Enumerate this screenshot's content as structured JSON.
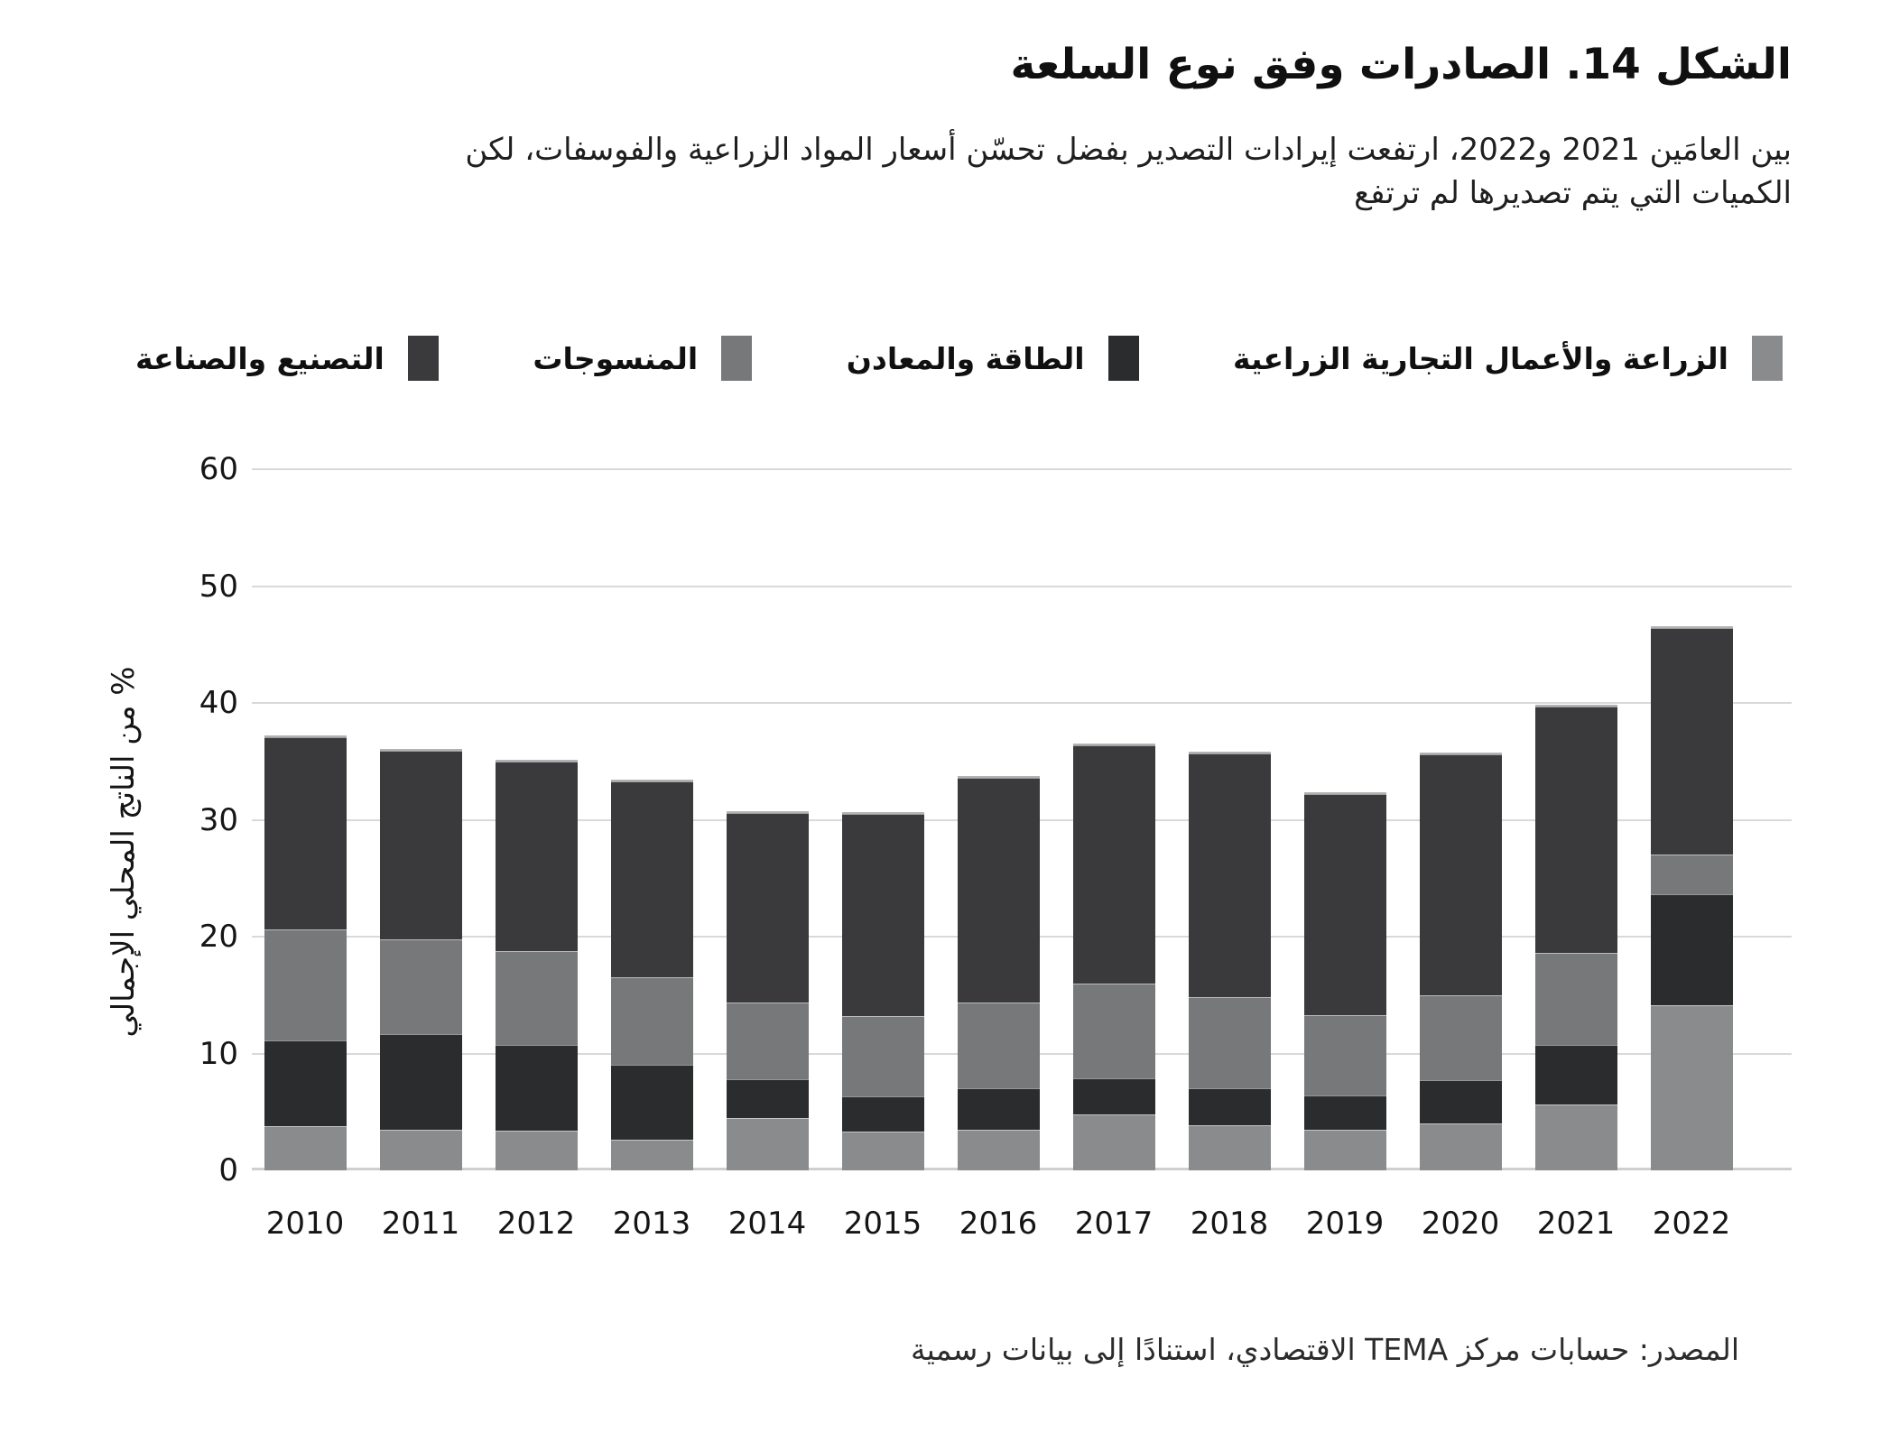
{
  "title": "الشكل 14. الصادرات وفق نوع السلعة",
  "subtitle": {
    "line1": "بين العامَين 2021 و2022، ارتفعت إيرادات التصدير بفضل تحسّن أسعار المواد الزراعية والفوسفات، لكن",
    "line2": "الكميات التي يتم تصديرها لم ترتفع"
  },
  "legend": [
    {
      "key": "agriculture",
      "label": "الزراعة والأعمال التجارية الزراعية",
      "color": "#8a8b8d"
    },
    {
      "key": "energy",
      "label": "الطاقة والمعادن",
      "color": "#2b2c2e"
    },
    {
      "key": "textiles",
      "label": "المنسوجات",
      "color": "#77787a"
    },
    {
      "key": "manufacturing",
      "label": "التصنيع والصناعة",
      "color": "#3a3a3c"
    }
  ],
  "y_axis": {
    "label": "% من الناتج المحلي الإجمالي",
    "ticks": [
      0,
      10,
      20,
      30,
      40,
      50,
      60
    ],
    "min": 0,
    "max": 60
  },
  "chart_data": {
    "type": "bar",
    "stacked": true,
    "title": "الشكل 14. الصادرات وفق نوع السلعة",
    "xlabel": "",
    "ylabel": "% من الناتج المحلي الإجمالي",
    "ylim": [
      0,
      60
    ],
    "grid": true,
    "legend_position": "top",
    "categories": [
      "2010",
      "2011",
      "2012",
      "2013",
      "2014",
      "2015",
      "2016",
      "2017",
      "2018",
      "2019",
      "2020",
      "2021",
      "2022"
    ],
    "series": [
      {
        "key": "agriculture",
        "name": "الزراعة والأعمال التجارية الزراعية",
        "color": "#8a8b8d",
        "values": [
          3.8,
          3.5,
          3.4,
          2.6,
          4.5,
          3.3,
          3.5,
          4.8,
          3.9,
          3.5,
          4.0,
          5.6,
          14.1
        ]
      },
      {
        "key": "energy",
        "name": "الطاقة والمعادن",
        "color": "#2b2c2e",
        "values": [
          7.3,
          8.2,
          7.3,
          6.4,
          3.3,
          3.0,
          3.5,
          3.1,
          3.1,
          2.9,
          3.7,
          5.1,
          9.5
        ]
      },
      {
        "key": "textiles",
        "name": "المنسوجات",
        "color": "#77787a",
        "values": [
          9.5,
          8.1,
          8.1,
          7.5,
          6.6,
          6.9,
          7.4,
          8.1,
          7.8,
          6.9,
          7.3,
          7.9,
          3.4
        ]
      },
      {
        "key": "manufacturing",
        "name": "التصنيع والصناعة",
        "color": "#3a3a3c",
        "values": [
          16.5,
          16.1,
          16.2,
          16.8,
          16.2,
          17.3,
          19.2,
          20.4,
          20.9,
          18.9,
          20.6,
          21.1,
          19.4
        ]
      }
    ],
    "totals": [
      37.1,
      35.9,
      35.0,
      33.3,
      30.6,
      30.5,
      33.6,
      36.4,
      35.7,
      32.2,
      35.6,
      39.7,
      46.4
    ]
  },
  "source": "المصدر: حسابات مركز TEMA الاقتصادي، استنادًا إلى بيانات رسمية"
}
